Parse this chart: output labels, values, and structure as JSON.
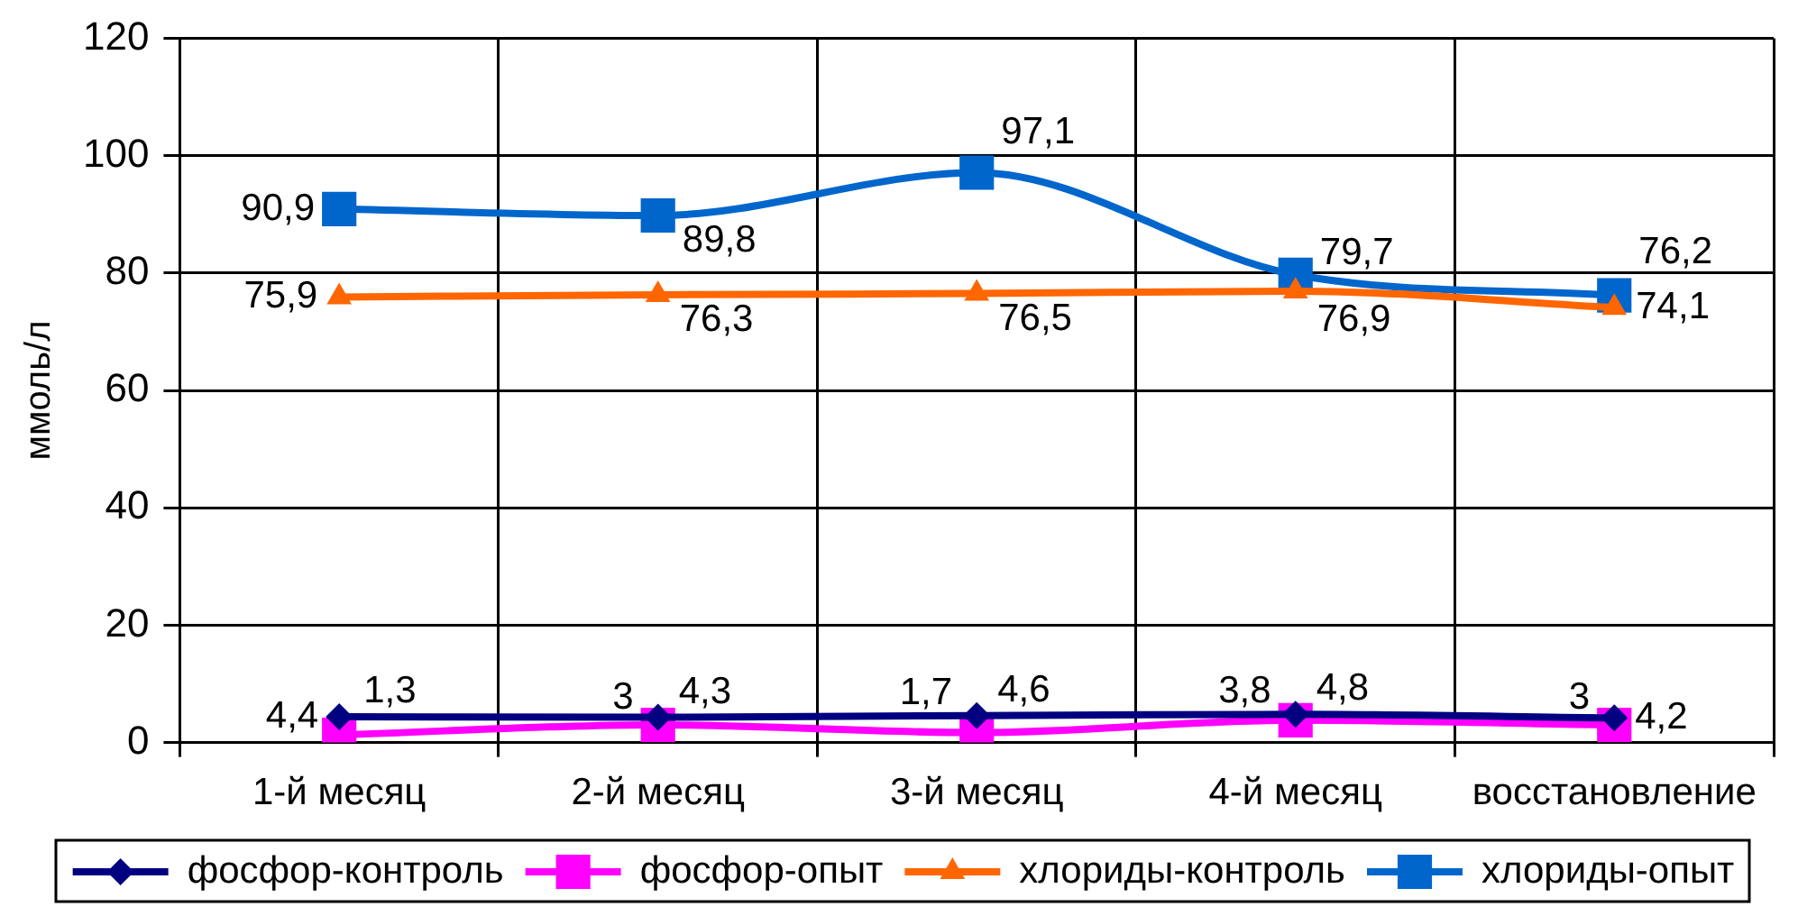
{
  "chart_data": {
    "type": "line",
    "ylabel": "ммоль/л",
    "categories": [
      "1-й месяц",
      "2-й месяц",
      "3-й месяц",
      "4-й месяц",
      "восстановление"
    ],
    "series": [
      {
        "name": "фосфор-контроль",
        "color": "#000080",
        "marker": "diamond",
        "values": [
          4.4,
          4.3,
          4.6,
          4.8,
          4.2
        ],
        "value_labels": [
          "4,4",
          "4,3",
          "4,6",
          "4,8",
          "4,2"
        ]
      },
      {
        "name": "фосфор-опыт",
        "color": "#ff00ff",
        "marker": "square",
        "values": [
          1.3,
          3,
          1.7,
          3.8,
          3
        ],
        "value_labels": [
          "1,3",
          "3",
          "1,7",
          "3,8",
          "3"
        ]
      },
      {
        "name": "хлориды-контроль",
        "color": "#ff6600",
        "marker": "triangle",
        "values": [
          75.9,
          76.3,
          76.5,
          76.9,
          74.1
        ],
        "value_labels": [
          "75,9",
          "76,3",
          "76,5",
          "76,9",
          "74,1"
        ]
      },
      {
        "name": "хлориды-опыт",
        "color": "#0066cc",
        "marker": "square",
        "values": [
          90.9,
          89.8,
          97.1,
          79.7,
          76.2
        ],
        "value_labels": [
          "90,9",
          "89,8",
          "97,1",
          "79,7",
          "76,2"
        ]
      }
    ],
    "ylim": [
      0,
      120
    ],
    "yticks": [
      0,
      20,
      40,
      60,
      80,
      100,
      120
    ],
    "grid": true,
    "legend": "bottom",
    "line_style": "solid"
  }
}
